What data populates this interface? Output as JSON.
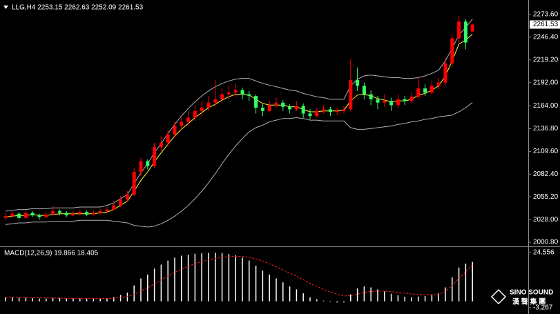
{
  "chart_data": {
    "type": "candlestick",
    "title": "LLG,H4  2253.15 2262.63 2252.09 2261.53",
    "macd_title": "MACD(12,26,9) 19.866 18.405",
    "watermark": {
      "name": "SINO SOUND",
      "subtitle": "漢 聲 集 團"
    },
    "up_color": "#ff0000",
    "down_color": "#33ff66",
    "band_color": "#b0b0b0",
    "ma_color": "#ffff33",
    "hist_color": "#ffffff",
    "signal_color": "#ff2020",
    "ylim": [
      1996.7,
      2290.9
    ],
    "yticks": [
      {
        "value": 2273.6,
        "label": "2273.60"
      },
      {
        "value": 2246.4,
        "label": "2246.40"
      },
      {
        "value": 2219.2,
        "label": "2219.20"
      },
      {
        "value": 2192,
        "label": "2192.00"
      },
      {
        "value": 2164,
        "label": "2164.00"
      },
      {
        "value": 2136.8,
        "label": "2136.80"
      },
      {
        "value": 2109.6,
        "label": "2109.60"
      },
      {
        "value": 2082.4,
        "label": "2082.40"
      },
      {
        "value": 2055.2,
        "label": "2055.20"
      },
      {
        "value": 2028,
        "label": "2028.00"
      },
      {
        "value": 2000.8,
        "label": "2000.80"
      }
    ],
    "last_price": 2261.53,
    "ohlc": [
      [
        2030,
        2036,
        2027,
        2032
      ],
      [
        2032,
        2038,
        2030,
        2035
      ],
      [
        2035,
        2037,
        2028,
        2030
      ],
      [
        2030,
        2039,
        2029,
        2036
      ],
      [
        2036,
        2038,
        2031,
        2033
      ],
      [
        2033,
        2035,
        2028,
        2031
      ],
      [
        2031,
        2037,
        2030,
        2034
      ],
      [
        2034,
        2044,
        2033,
        2038
      ],
      [
        2038,
        2040,
        2033,
        2036
      ],
      [
        2036,
        2038,
        2031,
        2033
      ],
      [
        2033,
        2038,
        2032,
        2035
      ],
      [
        2035,
        2040,
        2033,
        2037
      ],
      [
        2037,
        2039,
        2032,
        2034
      ],
      [
        2034,
        2039,
        2033,
        2036
      ],
      [
        2036,
        2041,
        2034,
        2038
      ],
      [
        2038,
        2043,
        2036,
        2040
      ],
      [
        2040,
        2050,
        2039,
        2045
      ],
      [
        2045,
        2056,
        2043,
        2052
      ],
      [
        2052,
        2062,
        2050,
        2058
      ],
      [
        2058,
        2090,
        2056,
        2085
      ],
      [
        2085,
        2102,
        2080,
        2098
      ],
      [
        2098,
        2100,
        2088,
        2092
      ],
      [
        2092,
        2120,
        2090,
        2115
      ],
      [
        2115,
        2128,
        2110,
        2120
      ],
      [
        2120,
        2136,
        2116,
        2130
      ],
      [
        2130,
        2146,
        2126,
        2140
      ],
      [
        2140,
        2152,
        2135,
        2145
      ],
      [
        2145,
        2158,
        2140,
        2150
      ],
      [
        2150,
        2165,
        2146,
        2158
      ],
      [
        2158,
        2170,
        2152,
        2162
      ],
      [
        2162,
        2176,
        2158,
        2168
      ],
      [
        2168,
        2195,
        2164,
        2172
      ],
      [
        2172,
        2185,
        2168,
        2178
      ],
      [
        2178,
        2188,
        2172,
        2180
      ],
      [
        2180,
        2190,
        2175,
        2183
      ],
      [
        2183,
        2186,
        2172,
        2178
      ],
      [
        2178,
        2182,
        2170,
        2176
      ],
      [
        2176,
        2178,
        2155,
        2162
      ],
      [
        2162,
        2166,
        2152,
        2158
      ],
      [
        2158,
        2170,
        2156,
        2165
      ],
      [
        2165,
        2174,
        2162,
        2168
      ],
      [
        2168,
        2171,
        2158,
        2163
      ],
      [
        2163,
        2166,
        2155,
        2160
      ],
      [
        2160,
        2170,
        2158,
        2164
      ],
      [
        2164,
        2167,
        2150,
        2155
      ],
      [
        2155,
        2160,
        2148,
        2152
      ],
      [
        2152,
        2162,
        2150,
        2158
      ],
      [
        2158,
        2165,
        2155,
        2160
      ],
      [
        2160,
        2163,
        2152,
        2157
      ],
      [
        2157,
        2162,
        2153,
        2158
      ],
      [
        2158,
        2164,
        2155,
        2160
      ],
      [
        2160,
        2220,
        2158,
        2195
      ],
      [
        2195,
        2210,
        2182,
        2188
      ],
      [
        2188,
        2192,
        2172,
        2178
      ],
      [
        2178,
        2183,
        2165,
        2172
      ],
      [
        2172,
        2176,
        2160,
        2168
      ],
      [
        2168,
        2178,
        2163,
        2170
      ],
      [
        2170,
        2174,
        2158,
        2165
      ],
      [
        2165,
        2178,
        2162,
        2172
      ],
      [
        2172,
        2176,
        2165,
        2170
      ],
      [
        2170,
        2180,
        2167,
        2175
      ],
      [
        2175,
        2198,
        2172,
        2185
      ],
      [
        2185,
        2190,
        2176,
        2180
      ],
      [
        2180,
        2194,
        2178,
        2188
      ],
      [
        2188,
        2198,
        2184,
        2192
      ],
      [
        2192,
        2222,
        2188,
        2215
      ],
      [
        2215,
        2250,
        2210,
        2245
      ],
      [
        2245,
        2272,
        2240,
        2265
      ],
      [
        2265,
        2268,
        2232,
        2240
      ],
      [
        2253.15,
        2262.63,
        2252.09,
        2261.53
      ]
    ],
    "upper_band": [
      2038,
      2039,
      2040,
      2040,
      2041,
      2041,
      2041,
      2042,
      2042,
      2042,
      2042,
      2043,
      2043,
      2043,
      2043,
      2045,
      2048,
      2053,
      2058,
      2071,
      2084,
      2095,
      2108,
      2119,
      2131,
      2142,
      2152,
      2161,
      2169,
      2176,
      2182,
      2187,
      2191,
      2194,
      2196,
      2197,
      2197,
      2194,
      2191,
      2189,
      2187,
      2185,
      2183,
      2182,
      2179,
      2177,
      2175,
      2174,
      2172,
      2172,
      2172,
      2188,
      2196,
      2200,
      2201,
      2200,
      2199,
      2198,
      2198,
      2197,
      2197,
      2198,
      2200,
      2203,
      2207,
      2218,
      2233,
      2249,
      2258,
      2268
    ],
    "lower_band": [
      2022,
      2023,
      2024,
      2024,
      2025,
      2025,
      2025,
      2026,
      2026,
      2026,
      2026,
      2027,
      2027,
      2027,
      2027,
      2027,
      2026,
      2025,
      2024,
      2021,
      2020,
      2019,
      2020,
      2023,
      2027,
      2032,
      2038,
      2045,
      2053,
      2062,
      2072,
      2083,
      2095,
      2106,
      2116,
      2125,
      2133,
      2138,
      2141,
      2145,
      2147,
      2149,
      2149,
      2150,
      2149,
      2147,
      2147,
      2146,
      2146,
      2146,
      2146,
      2138,
      2136,
      2136,
      2137,
      2138,
      2139,
      2140,
      2142,
      2143,
      2145,
      2146,
      2148,
      2149,
      2151,
      2152,
      2153,
      2157,
      2162,
      2168
    ],
    "ma": [
      2031,
      2032,
      2033,
      2033,
      2034,
      2033,
      2033,
      2034,
      2035,
      2035,
      2035,
      2035,
      2035,
      2035,
      2036,
      2037,
      2040,
      2045,
      2050,
      2062,
      2075,
      2085,
      2097,
      2108,
      2118,
      2128,
      2136,
      2143,
      2150,
      2156,
      2162,
      2166,
      2171,
      2175,
      2178,
      2178,
      2177,
      2172,
      2167,
      2165,
      2165,
      2165,
      2163,
      2163,
      2160,
      2157,
      2157,
      2158,
      2158,
      2158,
      2159,
      2170,
      2177,
      2178,
      2176,
      2173,
      2171,
      2169,
      2170,
      2170,
      2172,
      2177,
      2179,
      2183,
      2188,
      2200,
      2218,
      2238,
      2243,
      2250
    ],
    "macd_ylim": [
      -3.267,
      24.556
    ],
    "macd_yticks": [
      24.556,
      -3.267
    ],
    "macd_hist": [
      2,
      2,
      1.8,
      1.8,
      1.6,
      1.4,
      1.4,
      1.6,
      1.6,
      1.4,
      1.4,
      1.4,
      1.2,
      1.2,
      1.4,
      1.6,
      2.2,
      3.2,
      4.4,
      8,
      11.5,
      13.5,
      16.5,
      18.5,
      20.5,
      22,
      23,
      23.5,
      24,
      24.2,
      24.4,
      24.5,
      24.3,
      23.8,
      23.2,
      22,
      20.5,
      18,
      15.5,
      13.5,
      11.5,
      9.5,
      7.5,
      6,
      4,
      2,
      1,
      0.3,
      -0.3,
      -0.6,
      -0.6,
      3.5,
      6.5,
      7.5,
      7,
      6,
      5,
      3.8,
      3,
      2.3,
      2,
      2.4,
      2.6,
      3.2,
      4,
      7,
      12,
      17,
      19,
      19.866
    ],
    "macd_signal": [
      2,
      2,
      2,
      1.9,
      1.9,
      1.8,
      1.7,
      1.7,
      1.6,
      1.6,
      1.5,
      1.5,
      1.4,
      1.4,
      1.4,
      1.4,
      1.6,
      1.9,
      2.4,
      3.5,
      5.1,
      6.8,
      8.8,
      10.7,
      12.7,
      14.5,
      16.2,
      17.6,
      18.9,
      20,
      20.9,
      21.6,
      22.2,
      22.5,
      22.7,
      22.6,
      22.2,
      21.4,
      20.2,
      18.9,
      17.4,
      15.8,
      14.2,
      12.6,
      10.9,
      9.1,
      7.5,
      6,
      4.7,
      3.6,
      2.7,
      2.9,
      3.6,
      4.4,
      4.9,
      5.1,
      5.1,
      4.9,
      4.5,
      4.1,
      3.7,
      3.4,
      3.3,
      3.3,
      3.4,
      5,
      8,
      11.5,
      14.8,
      18.405
    ]
  }
}
